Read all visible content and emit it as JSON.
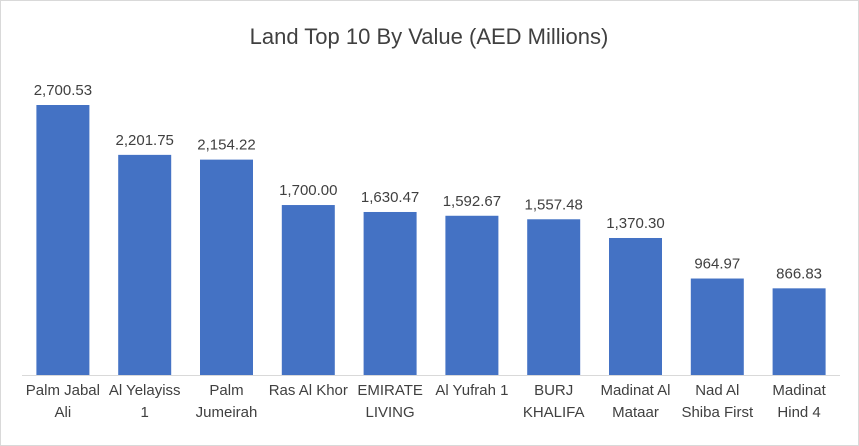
{
  "chart_data": {
    "type": "bar",
    "title": "Land Top 10 By Value (AED Millions)",
    "categories": [
      "Palm Jabal Ali",
      "Al Yelayiss 1",
      "Palm Jumeirah",
      "Ras Al Khor",
      "EMIRATE LIVING",
      "Al Yufrah 1",
      "BURJ KHALIFA",
      "Madinat Al Mataar",
      "Nad Al Shiba First",
      "Madinat Hind 4"
    ],
    "values": [
      2700.53,
      2201.75,
      2154.22,
      1700.0,
      1630.47,
      1592.67,
      1557.48,
      1370.3,
      964.97,
      866.83
    ],
    "value_labels": [
      "2,700.53",
      "2,201.75",
      "2,154.22",
      "1,700.00",
      "1,630.47",
      "1,592.67",
      "1,557.48",
      "1,370.30",
      "964.97",
      "866.83"
    ],
    "color": "#4472c4"
  }
}
